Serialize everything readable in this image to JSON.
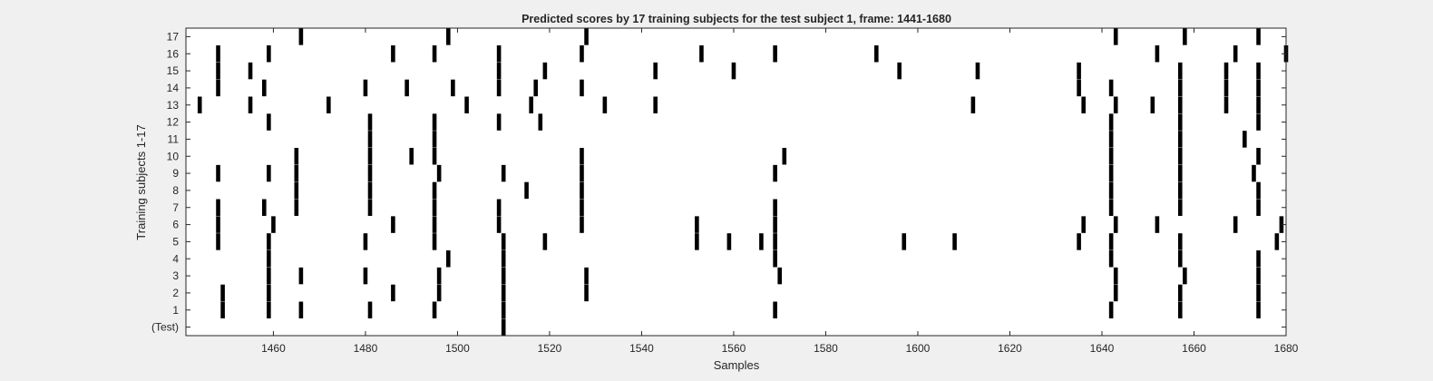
{
  "chart_data": {
    "type": "heatmap",
    "title": "Predicted scores by 17 training subjects for the test subject 1, frame: 1441-1680",
    "xlabel": "Samples",
    "ylabel": "Training subjects 1-17",
    "xlim": [
      1441,
      1680
    ],
    "x_ticks": [
      1460,
      1480,
      1500,
      1520,
      1540,
      1560,
      1580,
      1600,
      1620,
      1640,
      1660,
      1680
    ],
    "y_tick_labels": [
      "(Test)",
      "1",
      "2",
      "3",
      "4",
      "5",
      "6",
      "7",
      "8",
      "9",
      "10",
      "11",
      "12",
      "13",
      "14",
      "15",
      "16",
      "17"
    ],
    "grid": false,
    "colors": {
      "mark": "#000000",
      "background": "#ffffff",
      "figure": "#f0f0f0"
    },
    "rows": [
      {
        "label": "(Test)",
        "events": [
          1510
        ]
      },
      {
        "label": "1",
        "events": [
          1449,
          1459,
          1466,
          1481,
          1495,
          1510,
          1569,
          1642,
          1657,
          1674
        ]
      },
      {
        "label": "2",
        "events": [
          1449,
          1459,
          1486,
          1496,
          1510,
          1528,
          1643,
          1657,
          1674
        ]
      },
      {
        "label": "3",
        "events": [
          1459,
          1466,
          1480,
          1496,
          1510,
          1528,
          1570,
          1643,
          1658,
          1674
        ]
      },
      {
        "label": "4",
        "events": [
          1459,
          1498,
          1510,
          1569,
          1642,
          1657,
          1674
        ]
      },
      {
        "label": "5",
        "events": [
          1448,
          1459,
          1480,
          1495,
          1510,
          1519,
          1552,
          1559,
          1566,
          1569,
          1597,
          1608,
          1635,
          1642,
          1657,
          1678
        ]
      },
      {
        "label": "6",
        "events": [
          1448,
          1460,
          1486,
          1495,
          1509,
          1527,
          1552,
          1569,
          1636,
          1643,
          1652,
          1669,
          1679
        ]
      },
      {
        "label": "7",
        "events": [
          1448,
          1458,
          1465,
          1481,
          1495,
          1509,
          1527,
          1569,
          1642,
          1657,
          1674
        ]
      },
      {
        "label": "8",
        "events": [
          1465,
          1481,
          1495,
          1515,
          1527,
          1642,
          1657,
          1674
        ]
      },
      {
        "label": "9",
        "events": [
          1448,
          1459,
          1465,
          1481,
          1496,
          1510,
          1527,
          1569,
          1642,
          1657,
          1673
        ]
      },
      {
        "label": "10",
        "events": [
          1465,
          1481,
          1490,
          1495,
          1527,
          1571,
          1642,
          1657,
          1674
        ]
      },
      {
        "label": "11",
        "events": [
          1481,
          1495,
          1642,
          1657,
          1671
        ]
      },
      {
        "label": "12",
        "events": [
          1459,
          1481,
          1495,
          1509,
          1518,
          1642,
          1657,
          1674
        ]
      },
      {
        "label": "13",
        "events": [
          1444,
          1455,
          1472,
          1502,
          1516,
          1532,
          1543,
          1612,
          1636,
          1643,
          1651,
          1657,
          1667,
          1674
        ]
      },
      {
        "label": "14",
        "events": [
          1448,
          1458,
          1480,
          1489,
          1499,
          1509,
          1517,
          1527,
          1635,
          1642,
          1657,
          1667,
          1674
        ]
      },
      {
        "label": "15",
        "events": [
          1448,
          1455,
          1509,
          1519,
          1543,
          1560,
          1596,
          1613,
          1635,
          1657,
          1667,
          1674
        ]
      },
      {
        "label": "16",
        "events": [
          1448,
          1459,
          1486,
          1495,
          1509,
          1527,
          1553,
          1569,
          1591,
          1652,
          1669,
          1680
        ]
      },
      {
        "label": "17",
        "events": [
          1466,
          1498,
          1528,
          1643,
          1658,
          1674
        ]
      }
    ]
  }
}
